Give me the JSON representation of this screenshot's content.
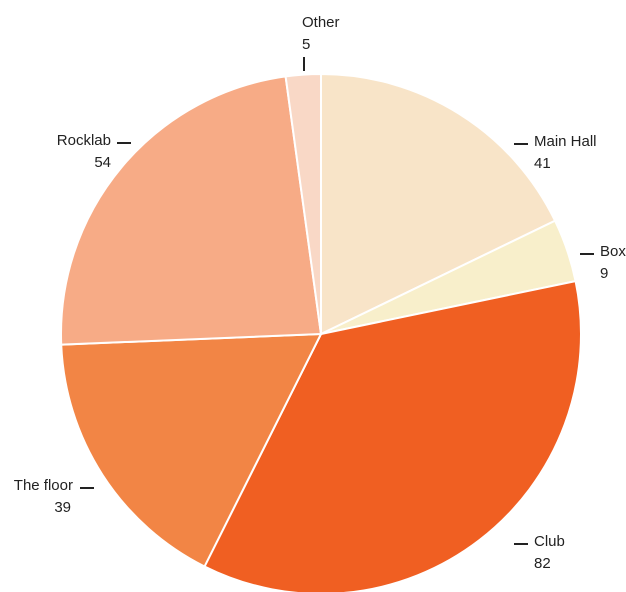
{
  "chart_data": {
    "type": "pie",
    "title": "",
    "slices": [
      {
        "label": "Main Hall",
        "value": 41,
        "color": "#F8E4C8"
      },
      {
        "label": "Box",
        "value": 9,
        "color": "#F8EFCB"
      },
      {
        "label": "Club",
        "value": 82,
        "color": "#F05F22"
      },
      {
        "label": "The floor",
        "value": 39,
        "color": "#F28545"
      },
      {
        "label": "Rocklab",
        "value": 54,
        "color": "#F7AB86"
      },
      {
        "label": "Other",
        "value": 5,
        "color": "#F9D8C6"
      }
    ],
    "label_style": "outside with leader ticks"
  }
}
